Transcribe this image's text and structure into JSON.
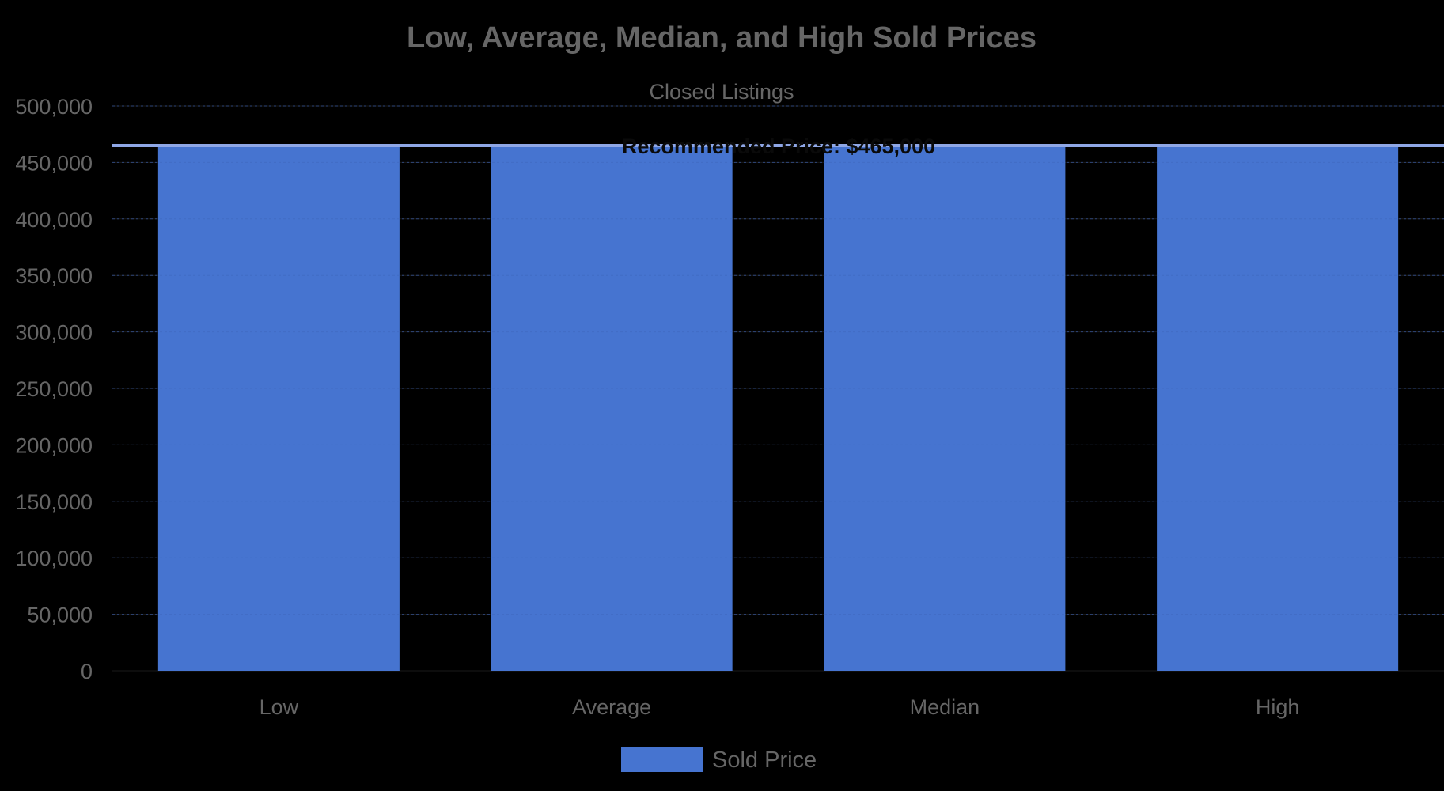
{
  "chart_data": {
    "type": "bar",
    "title": "Low, Average, Median, and High Sold Prices",
    "subtitle": "Closed Listings",
    "categories": [
      "Low",
      "Average",
      "Median",
      "High"
    ],
    "series": [
      {
        "name": "Sold Price",
        "color": "#4674d0",
        "values": [
          465000,
          465000,
          465000,
          465000
        ]
      }
    ],
    "ylim": [
      0,
      500000
    ],
    "y_ticks": [
      "0",
      "50,000",
      "100,000",
      "150,000",
      "200,000",
      "250,000",
      "300,000",
      "350,000",
      "400,000",
      "450,000",
      "500,000"
    ],
    "annotations": [
      {
        "type": "horizontal-line",
        "value": 465000,
        "label": "Recommended Price: $465,000",
        "color": "#8fa7e6"
      }
    ],
    "grid": true,
    "legend_position": "bottom",
    "colors": {
      "background": "#000000",
      "title": "#666666",
      "subtitle": "#666666",
      "tick_label": "#666666",
      "annotation_label": "#0a0a0a",
      "gridline": "#1a1a1a"
    }
  }
}
